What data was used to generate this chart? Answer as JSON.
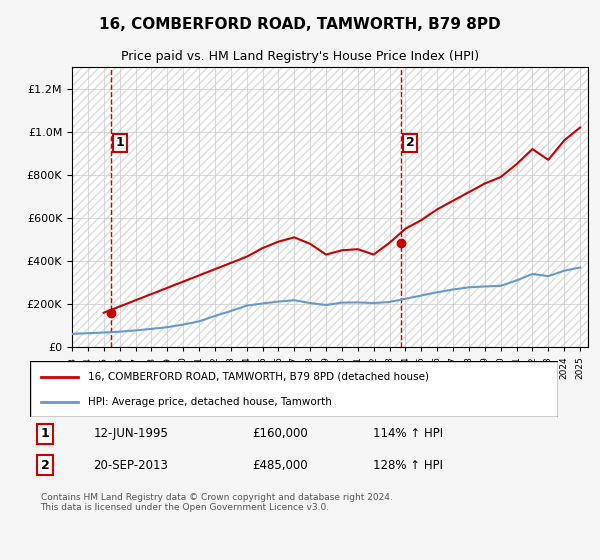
{
  "title": "16, COMBERFORD ROAD, TAMWORTH, B79 8PD",
  "subtitle": "Price paid vs. HM Land Registry's House Price Index (HPI)",
  "legend_line1": "16, COMBERFORD ROAD, TAMWORTH, B79 8PD (detached house)",
  "legend_line2": "HPI: Average price, detached house, Tamworth",
  "annotation1_label": "1",
  "annotation1_date": "12-JUN-1995",
  "annotation1_price": "£160,000",
  "annotation1_hpi": "114% ↑ HPI",
  "annotation2_label": "2",
  "annotation2_date": "20-SEP-2013",
  "annotation2_price": "£485,000",
  "annotation2_hpi": "128% ↑ HPI",
  "footer": "Contains HM Land Registry data © Crown copyright and database right 2024.\nThis data is licensed under the Open Government Licence v3.0.",
  "red_color": "#cc0000",
  "blue_color": "#6699cc",
  "hpi_years": [
    1993,
    1994,
    1995,
    1996,
    1997,
    1998,
    1999,
    2000,
    2001,
    2002,
    2003,
    2004,
    2005,
    2006,
    2007,
    2008,
    2009,
    2010,
    2011,
    2012,
    2013,
    2014,
    2015,
    2016,
    2017,
    2018,
    2019,
    2020,
    2021,
    2022,
    2023,
    2024,
    2025
  ],
  "hpi_values": [
    62000,
    65000,
    68000,
    72000,
    78000,
    85000,
    93000,
    105000,
    120000,
    145000,
    168000,
    193000,
    203000,
    212000,
    218000,
    205000,
    196000,
    207000,
    208000,
    205000,
    210000,
    225000,
    240000,
    255000,
    268000,
    278000,
    282000,
    285000,
    310000,
    340000,
    330000,
    355000,
    370000
  ],
  "house_years": [
    1993,
    1994,
    1995,
    1996,
    1997,
    1998,
    1999,
    2000,
    2001,
    2002,
    2003,
    2004,
    2005,
    2006,
    2007,
    2008,
    2009,
    2010,
    2011,
    2012,
    2013,
    2014,
    2015,
    2016,
    2017,
    2018,
    2019,
    2020,
    2021,
    2022,
    2023,
    2024,
    2025
  ],
  "house_values": [
    null,
    null,
    160000,
    null,
    null,
    null,
    null,
    null,
    null,
    null,
    null,
    420000,
    460000,
    490000,
    510000,
    480000,
    430000,
    450000,
    455000,
    430000,
    485000,
    550000,
    590000,
    640000,
    680000,
    720000,
    760000,
    790000,
    850000,
    920000,
    870000,
    960000,
    1020000
  ],
  "point1_x": 1995.45,
  "point1_y": 160000,
  "point2_x": 2013.72,
  "point2_y": 485000,
  "vline1_x": 1995.45,
  "vline2_x": 2013.72,
  "ylim": [
    0,
    1300000
  ],
  "xlim_start": 1993,
  "xlim_end": 2025.5,
  "background_color": "#f5f5f5",
  "plot_bg_color": "#ffffff"
}
